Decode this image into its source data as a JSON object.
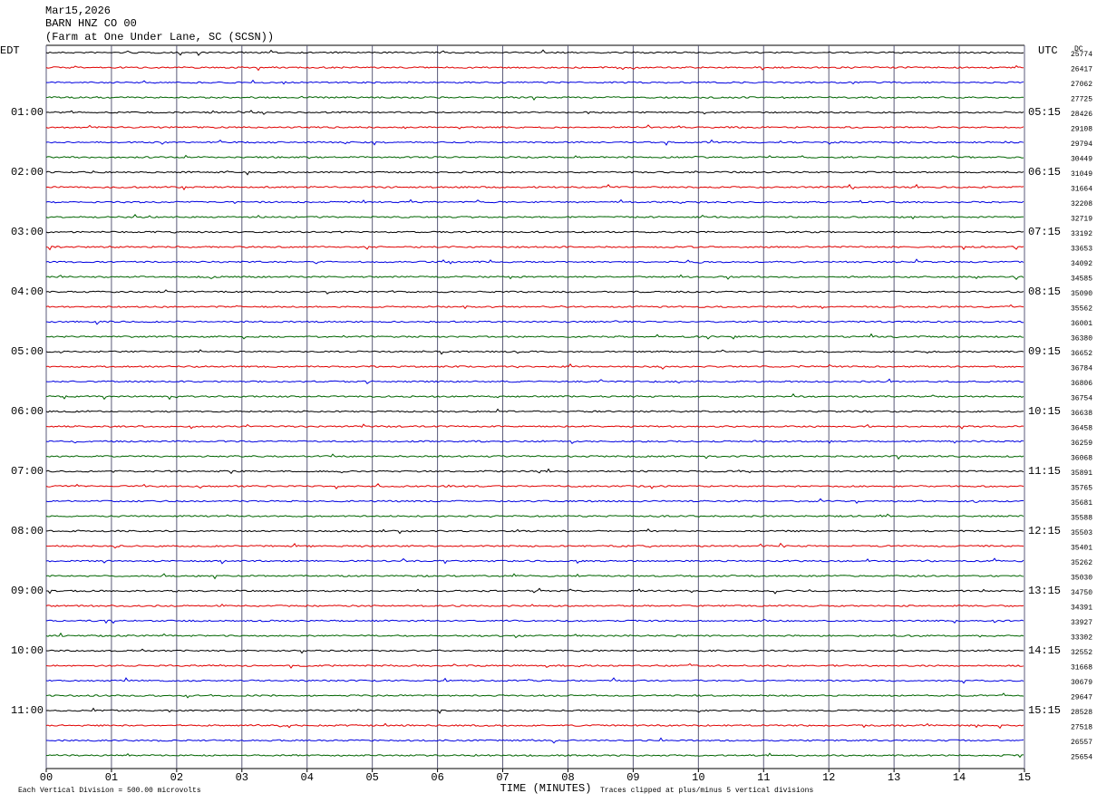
{
  "header": {
    "date": "Mar15,2026",
    "station": "BARN HNZ CO 00",
    "location": "(Farm at One Under Lane, SC (SCSN))"
  },
  "left_header": "EDT",
  "right_header": "UTC",
  "dc_header": "DC",
  "trace_colors": [
    "#000000",
    "#e00000",
    "#0000e0",
    "#006400"
  ],
  "rows": [
    {
      "left": null,
      "right": null,
      "dc": "25774"
    },
    {
      "left": null,
      "right": null,
      "dc": "26417"
    },
    {
      "left": null,
      "right": null,
      "dc": "27062"
    },
    {
      "left": null,
      "right": null,
      "dc": "27725"
    },
    {
      "left": "01:00",
      "right": "05:15",
      "dc": "28426"
    },
    {
      "left": null,
      "right": null,
      "dc": "29108"
    },
    {
      "left": null,
      "right": null,
      "dc": "29794"
    },
    {
      "left": null,
      "right": null,
      "dc": "30449"
    },
    {
      "left": "02:00",
      "right": "06:15",
      "dc": "31049"
    },
    {
      "left": null,
      "right": null,
      "dc": "31664"
    },
    {
      "left": null,
      "right": null,
      "dc": "32208"
    },
    {
      "left": null,
      "right": null,
      "dc": "32719"
    },
    {
      "left": "03:00",
      "right": "07:15",
      "dc": "33192"
    },
    {
      "left": null,
      "right": null,
      "dc": "33653"
    },
    {
      "left": null,
      "right": null,
      "dc": "34092"
    },
    {
      "left": null,
      "right": null,
      "dc": "34585"
    },
    {
      "left": "04:00",
      "right": "08:15",
      "dc": "35090"
    },
    {
      "left": null,
      "right": null,
      "dc": "35562"
    },
    {
      "left": null,
      "right": null,
      "dc": "36001"
    },
    {
      "left": null,
      "right": null,
      "dc": "36380"
    },
    {
      "left": "05:00",
      "right": "09:15",
      "dc": "36652"
    },
    {
      "left": null,
      "right": null,
      "dc": "36784"
    },
    {
      "left": null,
      "right": null,
      "dc": "36806"
    },
    {
      "left": null,
      "right": null,
      "dc": "36754"
    },
    {
      "left": "06:00",
      "right": "10:15",
      "dc": "36638"
    },
    {
      "left": null,
      "right": null,
      "dc": "36458"
    },
    {
      "left": null,
      "right": null,
      "dc": "36259"
    },
    {
      "left": null,
      "right": null,
      "dc": "36068"
    },
    {
      "left": "07:00",
      "right": "11:15",
      "dc": "35891"
    },
    {
      "left": null,
      "right": null,
      "dc": "35765"
    },
    {
      "left": null,
      "right": null,
      "dc": "35681"
    },
    {
      "left": null,
      "right": null,
      "dc": "35588"
    },
    {
      "left": "08:00",
      "right": "12:15",
      "dc": "35503"
    },
    {
      "left": null,
      "right": null,
      "dc": "35401"
    },
    {
      "left": null,
      "right": null,
      "dc": "35262"
    },
    {
      "left": null,
      "right": null,
      "dc": "35030"
    },
    {
      "left": "09:00",
      "right": "13:15",
      "dc": "34750"
    },
    {
      "left": null,
      "right": null,
      "dc": "34391"
    },
    {
      "left": null,
      "right": null,
      "dc": "33927"
    },
    {
      "left": null,
      "right": null,
      "dc": "33302"
    },
    {
      "left": "10:00",
      "right": "14:15",
      "dc": "32552"
    },
    {
      "left": null,
      "right": null,
      "dc": "31668"
    },
    {
      "left": null,
      "right": null,
      "dc": "30679"
    },
    {
      "left": null,
      "right": null,
      "dc": "29647"
    },
    {
      "left": "11:00",
      "right": "15:15",
      "dc": "28528"
    },
    {
      "left": null,
      "right": null,
      "dc": "27518"
    },
    {
      "left": null,
      "right": null,
      "dc": "26557"
    },
    {
      "left": null,
      "right": null,
      "dc": "25654"
    }
  ],
  "x_axis": {
    "title": "TIME (MINUTES)",
    "ticks": [
      "00",
      "01",
      "02",
      "03",
      "04",
      "05",
      "06",
      "07",
      "08",
      "09",
      "10",
      "11",
      "12",
      "13",
      "14",
      "15"
    ]
  },
  "footer": {
    "scale": "Each Vertical Division =  500.00 microvolts",
    "clip": "Traces clipped at plus/minus 5 vertical divisions"
  }
}
